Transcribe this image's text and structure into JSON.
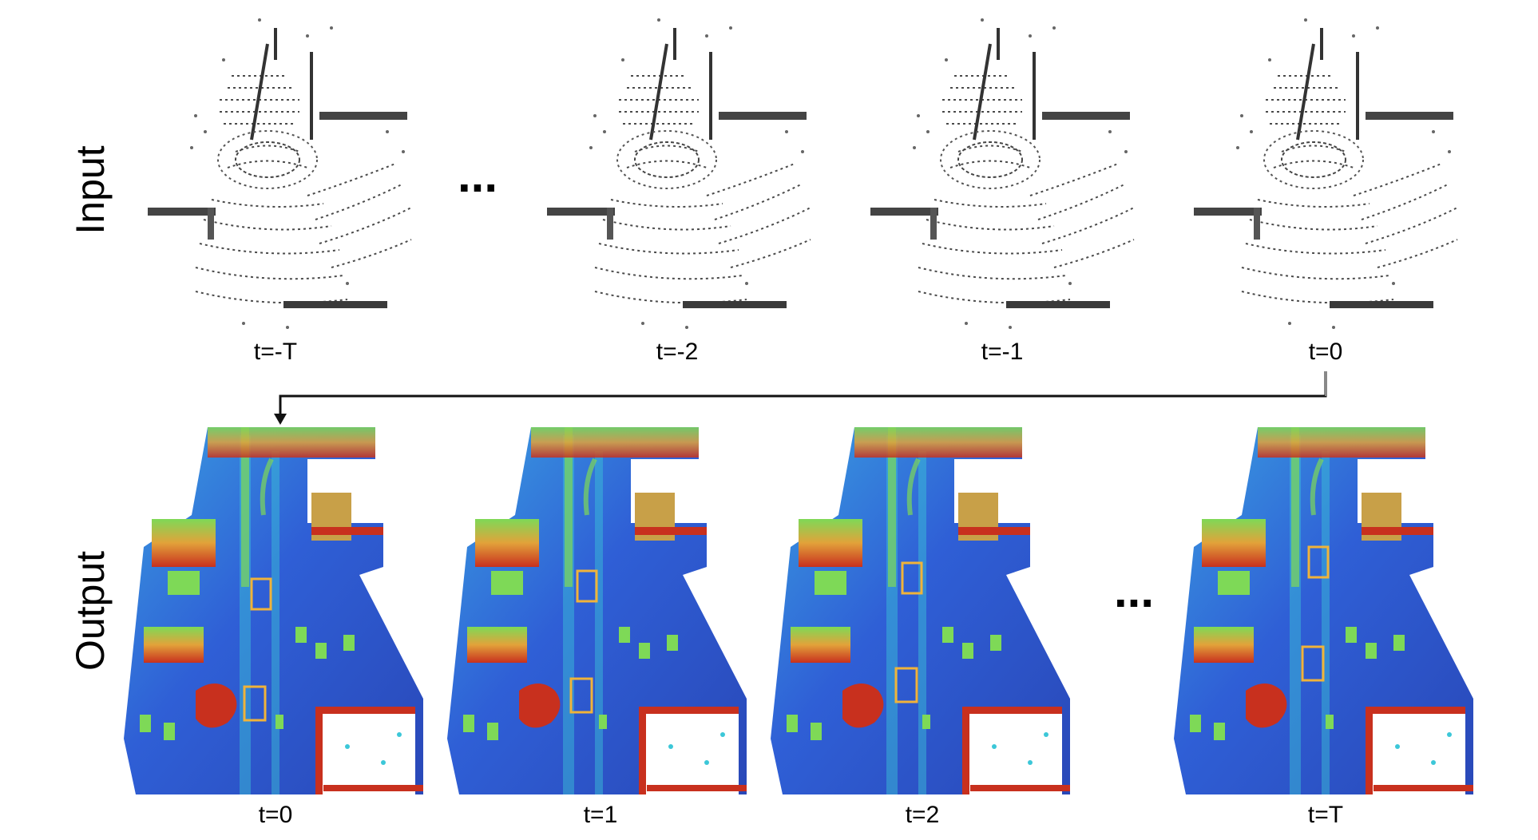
{
  "rows": {
    "input_label": "Input",
    "output_label": "Output"
  },
  "input_frames": [
    "t=-T",
    "t=-2",
    "t=-1",
    "t=0"
  ],
  "output_frames": [
    "t=0",
    "t=1",
    "t=2",
    "t=T"
  ],
  "ellipsis": "...",
  "colors": {
    "point_gray": "#4a4a4a",
    "ground_blue": "#2f5fd6",
    "mid_cyan": "#3cc7d8",
    "green": "#7ed957",
    "red": "#c8301e",
    "box_orange": "#f0b33a",
    "arrow": "#111111"
  }
}
